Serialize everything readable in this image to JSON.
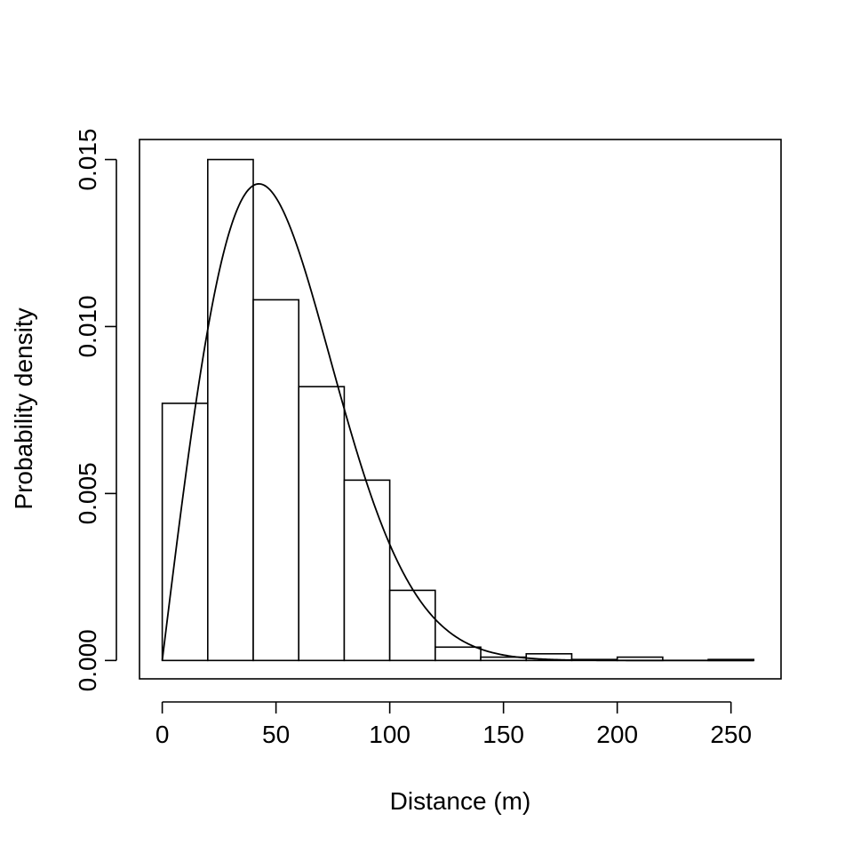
{
  "chart_data": {
    "type": "bar",
    "subtype": "histogram-with-density-curve",
    "xlabel": "Distance (m)",
    "ylabel": "Probability density",
    "xlim": [
      -10,
      272
    ],
    "ylim": [
      -0.00055,
      0.0156
    ],
    "x_ticks": [
      0,
      50,
      100,
      150,
      200,
      250
    ],
    "x_tick_labels": [
      "0",
      "50",
      "100",
      "150",
      "200",
      "250"
    ],
    "y_ticks": [
      0.0,
      0.005,
      0.01,
      0.015
    ],
    "y_tick_labels": [
      "0.000",
      "0.005",
      "0.010",
      "0.015"
    ],
    "bin_width": 20,
    "bins": [
      {
        "start": 0,
        "end": 20,
        "density": 0.0077
      },
      {
        "start": 20,
        "end": 40,
        "density": 0.015
      },
      {
        "start": 40,
        "end": 60,
        "density": 0.0108
      },
      {
        "start": 60,
        "end": 80,
        "density": 0.0082
      },
      {
        "start": 80,
        "end": 100,
        "density": 0.0054
      },
      {
        "start": 100,
        "end": 120,
        "density": 0.0021
      },
      {
        "start": 120,
        "end": 140,
        "density": 0.0004
      },
      {
        "start": 140,
        "end": 160,
        "density": 0.0001
      },
      {
        "start": 160,
        "end": 180,
        "density": 0.0002
      },
      {
        "start": 180,
        "end": 200,
        "density": 3e-05
      },
      {
        "start": 200,
        "end": 220,
        "density": 0.0001
      },
      {
        "start": 220,
        "end": 240,
        "density": 0.0
      },
      {
        "start": 240,
        "end": 260,
        "density": 3e-05
      }
    ],
    "density_curve": {
      "description": "Rayleigh density",
      "sigma": 42.5,
      "x_range": [
        0,
        260
      ]
    },
    "grid": false,
    "legend": "none"
  }
}
